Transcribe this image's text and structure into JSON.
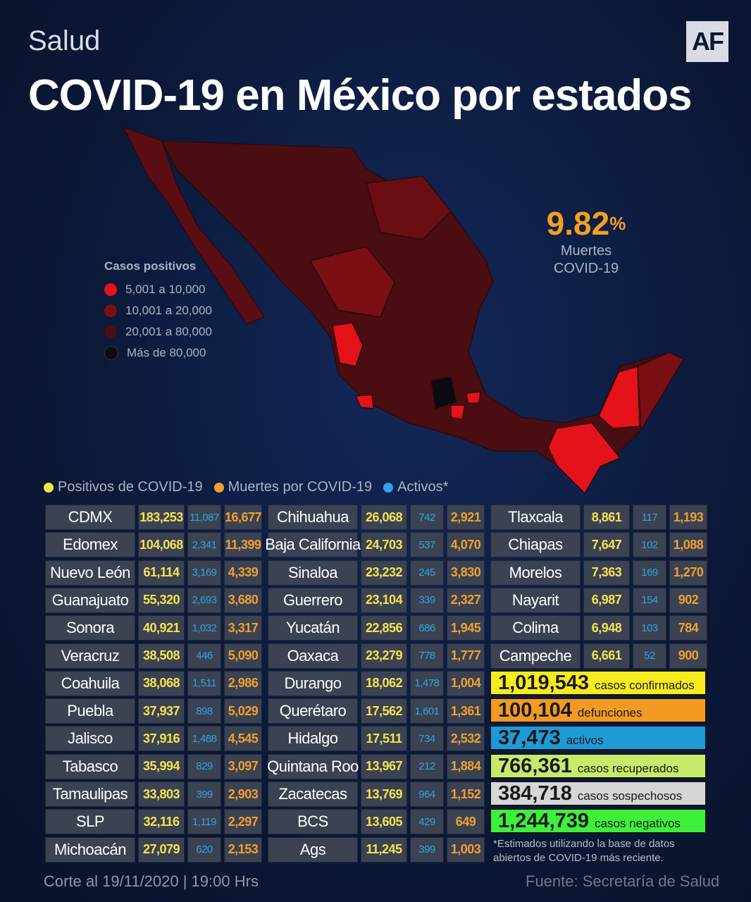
{
  "section": "Salud",
  "logo": "AF",
  "title": "COVID-19 en México por estados",
  "highlight": {
    "value": "9.82",
    "unit": "%",
    "line1": "Muertes",
    "line2": "COVID-19"
  },
  "map_legend": {
    "title": "Casos positivos",
    "items": [
      {
        "label": "5,001 a 10,000",
        "color": "#e3121b"
      },
      {
        "label": "10,001 a 20,000",
        "color": "#7a0f14"
      },
      {
        "label": "20,001 a 80,000",
        "color": "#4a0d12"
      },
      {
        "label": "Más de 80,000",
        "color": "#0b0b12"
      }
    ]
  },
  "table_legend": [
    {
      "label": "Positivos de COVID-19",
      "color": "#f5e34f"
    },
    {
      "label": "Muertes por COVID-19",
      "color": "#f0a030"
    },
    {
      "label": "Activos*",
      "color": "#2fa3e3"
    }
  ],
  "tables": [
    {
      "rows": [
        [
          "CDMX",
          "183,253",
          "11,087",
          "16,677"
        ],
        [
          "Edomex",
          "104,068",
          "2,341",
          "11,399"
        ],
        [
          "Nuevo León",
          "61,114",
          "3,169",
          "4,339"
        ],
        [
          "Guanajuato",
          "55,320",
          "2,693",
          "3,680"
        ],
        [
          "Sonora",
          "40,921",
          "1,032",
          "3,317"
        ],
        [
          "Veracruz",
          "38,508",
          "446",
          "5,090"
        ],
        [
          "Coahuila",
          "38,068",
          "1,511",
          "2,986"
        ],
        [
          "Puebla",
          "37,937",
          "898",
          "5,029"
        ],
        [
          "Jalisco",
          "37,916",
          "1,488",
          "4,545"
        ],
        [
          "Tabasco",
          "35,994",
          "829",
          "3,097"
        ],
        [
          "Tamaulipas",
          "33,803",
          "399",
          "2,903"
        ],
        [
          "SLP",
          "32,116",
          "1,119",
          "2,297"
        ],
        [
          "Michoacán",
          "27,079",
          "620",
          "2,153"
        ]
      ]
    },
    {
      "rows": [
        [
          "Chihuahua",
          "26,068",
          "742",
          "2,921"
        ],
        [
          "Baja California",
          "24,703",
          "537",
          "4,070"
        ],
        [
          "Sinaloa",
          "23,232",
          "245",
          "3,830"
        ],
        [
          "Guerrero",
          "23,104",
          "339",
          "2,327"
        ],
        [
          "Yucatán",
          "22,856",
          "686",
          "1,945"
        ],
        [
          "Oaxaca",
          "23,279",
          "778",
          "1,777"
        ],
        [
          "Durango",
          "18,062",
          "1,478",
          "1,004"
        ],
        [
          "Querétaro",
          "17,562",
          "1,601",
          "1,361"
        ],
        [
          "Hidalgo",
          "17,511",
          "734",
          "2,532"
        ],
        [
          "Quintana Roo",
          "13,967",
          "212",
          "1,884"
        ],
        [
          "Zacatecas",
          "13,769",
          "964",
          "1,152"
        ],
        [
          "BCS",
          "13,605",
          "429",
          "649"
        ],
        [
          "Ags",
          "11,245",
          "399",
          "1,003"
        ]
      ]
    },
    {
      "rows": [
        [
          "Tlaxcala",
          "8,861",
          "117",
          "1,193"
        ],
        [
          "Chiapas",
          "7,647",
          "102",
          "1,088"
        ],
        [
          "Morelos",
          "7,363",
          "169",
          "1,270"
        ],
        [
          "Nayarit",
          "6,987",
          "154",
          "902"
        ],
        [
          "Colima",
          "6,948",
          "103",
          "784"
        ],
        [
          "Campeche",
          "6,661",
          "52",
          "900"
        ]
      ]
    }
  ],
  "totals": [
    {
      "value": "1,019,543",
      "label": "casos confirmados",
      "color": "#f7ec1b"
    },
    {
      "value": "100,104",
      "label": "defunciones",
      "color": "#f29a21"
    },
    {
      "value": "37,473",
      "label": "activos",
      "color": "#1f9ad6"
    },
    {
      "value": "766,361",
      "label": "casos recuperados",
      "color": "#c6ea6a"
    },
    {
      "value": "384,718",
      "label": "casos sospechosos",
      "color": "#d6d6d6"
    },
    {
      "value": "1,244,739",
      "label": "casos negativos",
      "color": "#3ef03c"
    }
  ],
  "note": "*Estimados utilizando la base de datos abiertos de COVID-19 más reciente.",
  "footer": {
    "left": "Corte al 19/11/2020 | 19:00 Hrs",
    "right": "Fuente: Secretaría de Salud"
  }
}
